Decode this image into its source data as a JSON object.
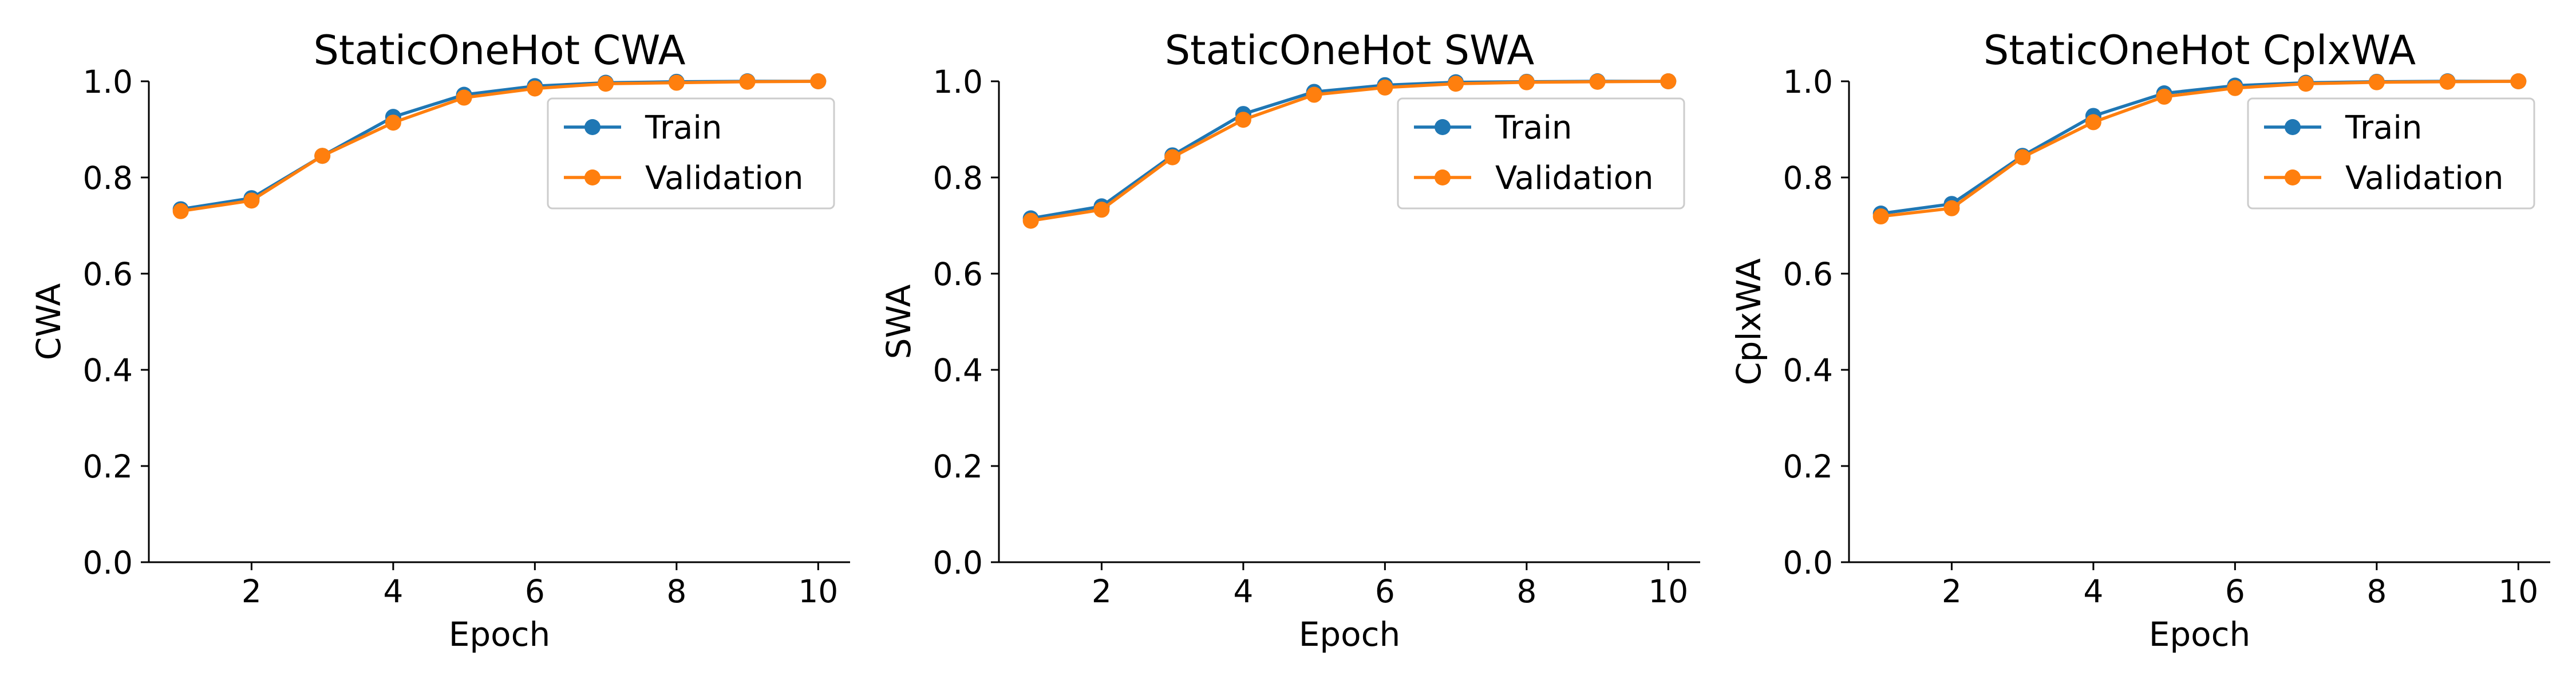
{
  "chart_data": [
    {
      "type": "line",
      "title": "StaticOneHot CWA",
      "xlabel": "Epoch",
      "ylabel": "CWA",
      "xlim": [
        0.55,
        10.45
      ],
      "ylim": [
        0.0,
        1.0
      ],
      "xticks": [
        2,
        4,
        6,
        8,
        10
      ],
      "yticks": [
        0.0,
        0.2,
        0.4,
        0.6,
        0.8,
        1.0
      ],
      "xtick_labels": [
        "2",
        "4",
        "6",
        "8",
        "10"
      ],
      "ytick_labels": [
        "0.0",
        "0.2",
        "0.4",
        "0.6",
        "0.8",
        "1.0"
      ],
      "x": [
        1,
        2,
        3,
        4,
        5,
        6,
        7,
        8,
        9,
        10
      ],
      "series": [
        {
          "name": "Train",
          "color": "#1f77b4",
          "values": [
            0.734,
            0.757,
            0.845,
            0.926,
            0.972,
            0.99,
            0.997,
            0.999,
            1.0,
            1.0
          ]
        },
        {
          "name": "Validation",
          "color": "#ff7f0e",
          "values": [
            0.73,
            0.752,
            0.845,
            0.914,
            0.966,
            0.985,
            0.995,
            0.997,
            0.999,
            1.0
          ]
        }
      ],
      "legend_position": "upper right",
      "grid": false
    },
    {
      "type": "line",
      "title": "StaticOneHot SWA",
      "xlabel": "Epoch",
      "ylabel": "SWA",
      "xlim": [
        0.55,
        10.45
      ],
      "ylim": [
        0.0,
        1.0
      ],
      "xticks": [
        2,
        4,
        6,
        8,
        10
      ],
      "yticks": [
        0.0,
        0.2,
        0.4,
        0.6,
        0.8,
        1.0
      ],
      "xtick_labels": [
        "2",
        "4",
        "6",
        "8",
        "10"
      ],
      "ytick_labels": [
        "0.0",
        "0.2",
        "0.4",
        "0.6",
        "0.8",
        "1.0"
      ],
      "x": [
        1,
        2,
        3,
        4,
        5,
        6,
        7,
        8,
        9,
        10
      ],
      "series": [
        {
          "name": "Train",
          "color": "#1f77b4",
          "values": [
            0.715,
            0.74,
            0.846,
            0.932,
            0.978,
            0.992,
            0.998,
            0.999,
            1.0,
            1.0
          ]
        },
        {
          "name": "Validation",
          "color": "#ff7f0e",
          "values": [
            0.71,
            0.733,
            0.842,
            0.92,
            0.972,
            0.987,
            0.995,
            0.998,
            0.999,
            1.0
          ]
        }
      ],
      "legend_position": "upper right",
      "grid": false
    },
    {
      "type": "line",
      "title": "StaticOneHot CplxWA",
      "xlabel": "Epoch",
      "ylabel": "CplxWA",
      "xlim": [
        0.55,
        10.45
      ],
      "ylim": [
        0.0,
        1.0
      ],
      "xticks": [
        2,
        4,
        6,
        8,
        10
      ],
      "yticks": [
        0.0,
        0.2,
        0.4,
        0.6,
        0.8,
        1.0
      ],
      "xtick_labels": [
        "2",
        "4",
        "6",
        "8",
        "10"
      ],
      "ytick_labels": [
        "0.0",
        "0.2",
        "0.4",
        "0.6",
        "0.8",
        "1.0"
      ],
      "x": [
        1,
        2,
        3,
        4,
        5,
        6,
        7,
        8,
        9,
        10
      ],
      "series": [
        {
          "name": "Train",
          "color": "#1f77b4",
          "values": [
            0.725,
            0.745,
            0.845,
            0.928,
            0.975,
            0.991,
            0.997,
            0.999,
            1.0,
            1.0
          ]
        },
        {
          "name": "Validation",
          "color": "#ff7f0e",
          "values": [
            0.719,
            0.736,
            0.842,
            0.915,
            0.968,
            0.986,
            0.995,
            0.998,
            0.999,
            1.0
          ]
        }
      ],
      "legend_position": "upper right",
      "grid": false
    }
  ]
}
